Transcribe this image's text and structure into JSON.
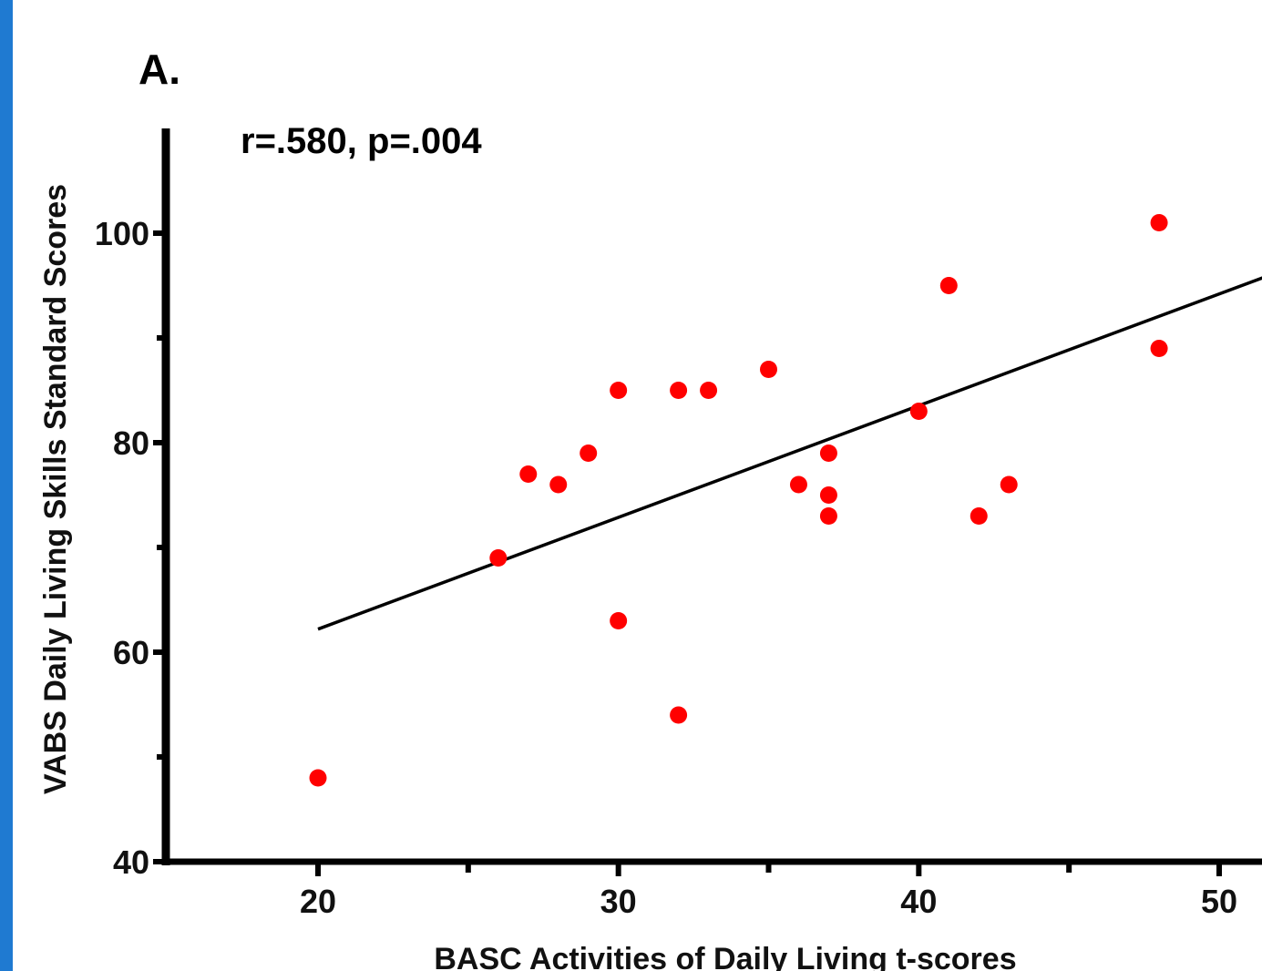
{
  "panel_label": "A.",
  "stat_annotation": "r=.580, p=.004",
  "colors": {
    "frame_accent": "#1f7ad1",
    "point": "#ff0000",
    "line": "#000000",
    "axis": "#000000"
  },
  "chart_data": {
    "type": "scatter",
    "title": "",
    "xlabel": "BASC Activities of Daily Living t-scores",
    "ylabel": "VABS Daily Living Skills Standard Scores",
    "xlim": [
      15.2,
      51.5
    ],
    "ylim": [
      40,
      110
    ],
    "x_ticks": [
      20,
      30,
      40,
      50
    ],
    "x_minor_ticks": [
      25,
      35,
      45
    ],
    "y_ticks": [
      40,
      60,
      80,
      100
    ],
    "y_minor_ticks": [
      50,
      70,
      90
    ],
    "grid": false,
    "points": [
      {
        "x": 20,
        "y": 48
      },
      {
        "x": 26,
        "y": 69
      },
      {
        "x": 27,
        "y": 77
      },
      {
        "x": 28,
        "y": 76
      },
      {
        "x": 29,
        "y": 79
      },
      {
        "x": 30,
        "y": 85
      },
      {
        "x": 30,
        "y": 63
      },
      {
        "x": 32,
        "y": 85
      },
      {
        "x": 32,
        "y": 54
      },
      {
        "x": 33,
        "y": 85
      },
      {
        "x": 35,
        "y": 87
      },
      {
        "x": 36,
        "y": 76
      },
      {
        "x": 37,
        "y": 79
      },
      {
        "x": 37,
        "y": 75
      },
      {
        "x": 37,
        "y": 73
      },
      {
        "x": 40,
        "y": 83
      },
      {
        "x": 41,
        "y": 95
      },
      {
        "x": 42,
        "y": 73
      },
      {
        "x": 43,
        "y": 76
      },
      {
        "x": 48,
        "y": 101
      },
      {
        "x": 48,
        "y": 89
      }
    ],
    "regression_line": {
      "x": [
        20,
        51.5
      ],
      "y": [
        62.2,
        95.8
      ]
    }
  }
}
